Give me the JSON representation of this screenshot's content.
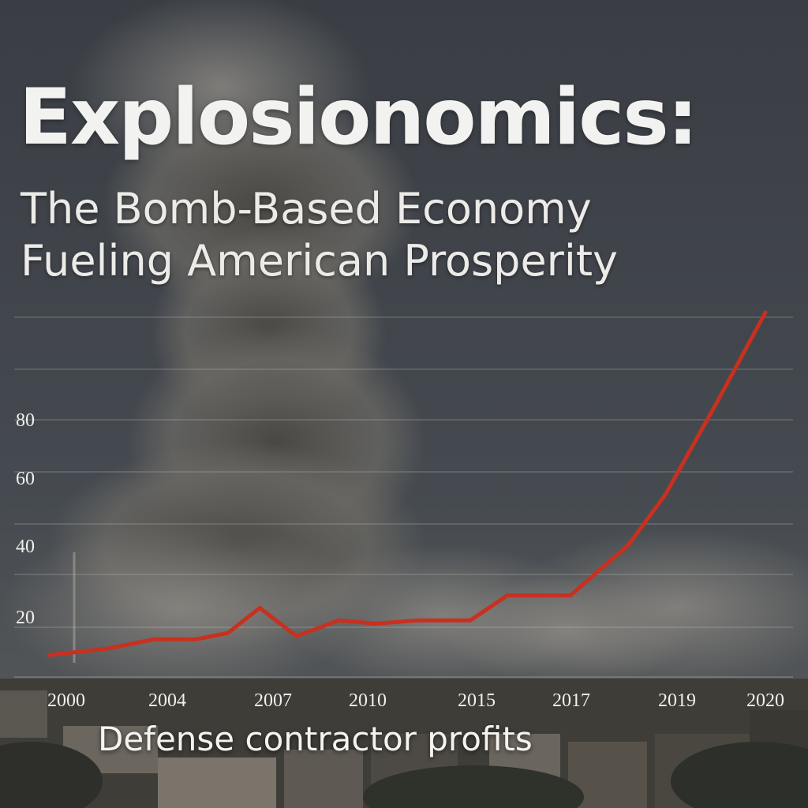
{
  "header": {
    "title": "Explosionomics:",
    "subtitle": "The Bomb-Based Economy\nFueling American Prosperity"
  },
  "caption": "Defense contractor profits",
  "colors": {
    "sky": "#3d4146",
    "smoke": "#6b6a66",
    "line": "#c8301f",
    "text": "#f2f2f0"
  },
  "chart_data": {
    "type": "line",
    "title": "",
    "xlabel": "Defense contractor profits",
    "ylabel": "",
    "x_tick_labels": [
      "2000",
      "2004",
      "2007",
      "2010",
      "2015",
      "2017",
      "2019",
      "2020"
    ],
    "y_tick_labels": [
      "20",
      "40",
      "60",
      "80"
    ],
    "ylim": [
      0,
      115
    ],
    "grid": true,
    "legend": "none",
    "series": [
      {
        "color": "#c8301f",
        "points": [
          {
            "x": 0,
            "y": 7
          },
          {
            "x": 1.1,
            "y": 9
          },
          {
            "x": 2.0,
            "y": 12
          },
          {
            "x": 2.8,
            "y": 12
          },
          {
            "x": 3.4,
            "y": 14
          },
          {
            "x": 4.0,
            "y": 22
          },
          {
            "x": 4.7,
            "y": 13
          },
          {
            "x": 5.5,
            "y": 18
          },
          {
            "x": 6.2,
            "y": 17
          },
          {
            "x": 7.0,
            "y": 18
          },
          {
            "x": 8.0,
            "y": 18
          },
          {
            "x": 8.7,
            "y": 26
          },
          {
            "x": 9.9,
            "y": 26
          },
          {
            "x": 11.0,
            "y": 42
          },
          {
            "x": 11.7,
            "y": 58
          },
          {
            "x": 12.7,
            "y": 88
          },
          {
            "x": 13.6,
            "y": 116
          }
        ]
      }
    ]
  }
}
